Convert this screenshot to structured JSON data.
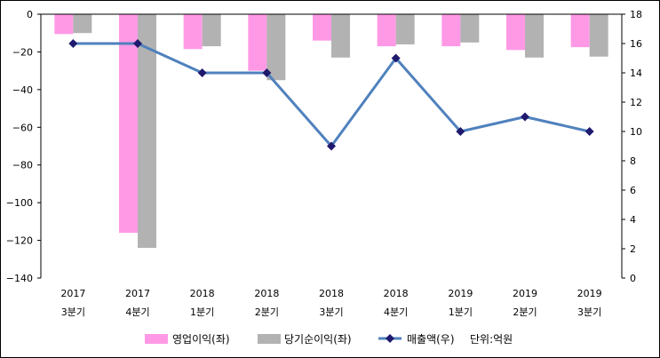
{
  "chart_data": {
    "type": "bar",
    "categories": [
      {
        "year": "2017",
        "quarter": "3분기"
      },
      {
        "year": "2017",
        "quarter": "4분기"
      },
      {
        "year": "2018",
        "quarter": "1분기"
      },
      {
        "year": "2018",
        "quarter": "2분기"
      },
      {
        "year": "2018",
        "quarter": "3분기"
      },
      {
        "year": "2018",
        "quarter": "4분기"
      },
      {
        "year": "2019",
        "quarter": "1분기"
      },
      {
        "year": "2019",
        "quarter": "2분기"
      },
      {
        "year": "2019",
        "quarter": "3분기"
      }
    ],
    "series": [
      {
        "name": "영업이익(좌)",
        "type": "bar",
        "axis": "left",
        "color": "#ff99e6",
        "values": [
          -10.5,
          -116,
          -18.5,
          -30,
          -14,
          -17,
          -17,
          -19,
          -17.5
        ]
      },
      {
        "name": "당기순이익(좌)",
        "type": "bar",
        "axis": "left",
        "color": "#b2b2b2",
        "values": [
          -10,
          -124,
          -17,
          -35,
          -23,
          -16,
          -15,
          -23,
          -22.5
        ]
      },
      {
        "name": "매출액(우)",
        "type": "line",
        "axis": "right",
        "color": "#4f81bd",
        "marker_color": "#1f1a6e",
        "values": [
          16,
          16,
          14,
          14,
          9,
          15,
          10,
          11,
          10
        ]
      }
    ],
    "ylim_left": [
      -140,
      0
    ],
    "ylim_right": [
      0,
      18
    ],
    "yticks_left": [
      "0",
      "-20",
      "-40",
      "-60",
      "-80",
      "-100",
      "-120",
      "-140"
    ],
    "yticks_right": [
      "18",
      "16",
      "14",
      "12",
      "10",
      "8",
      "6",
      "4",
      "2",
      "0"
    ],
    "unit_note": "단위:억원",
    "grid": false,
    "legend_position": "bottom"
  }
}
